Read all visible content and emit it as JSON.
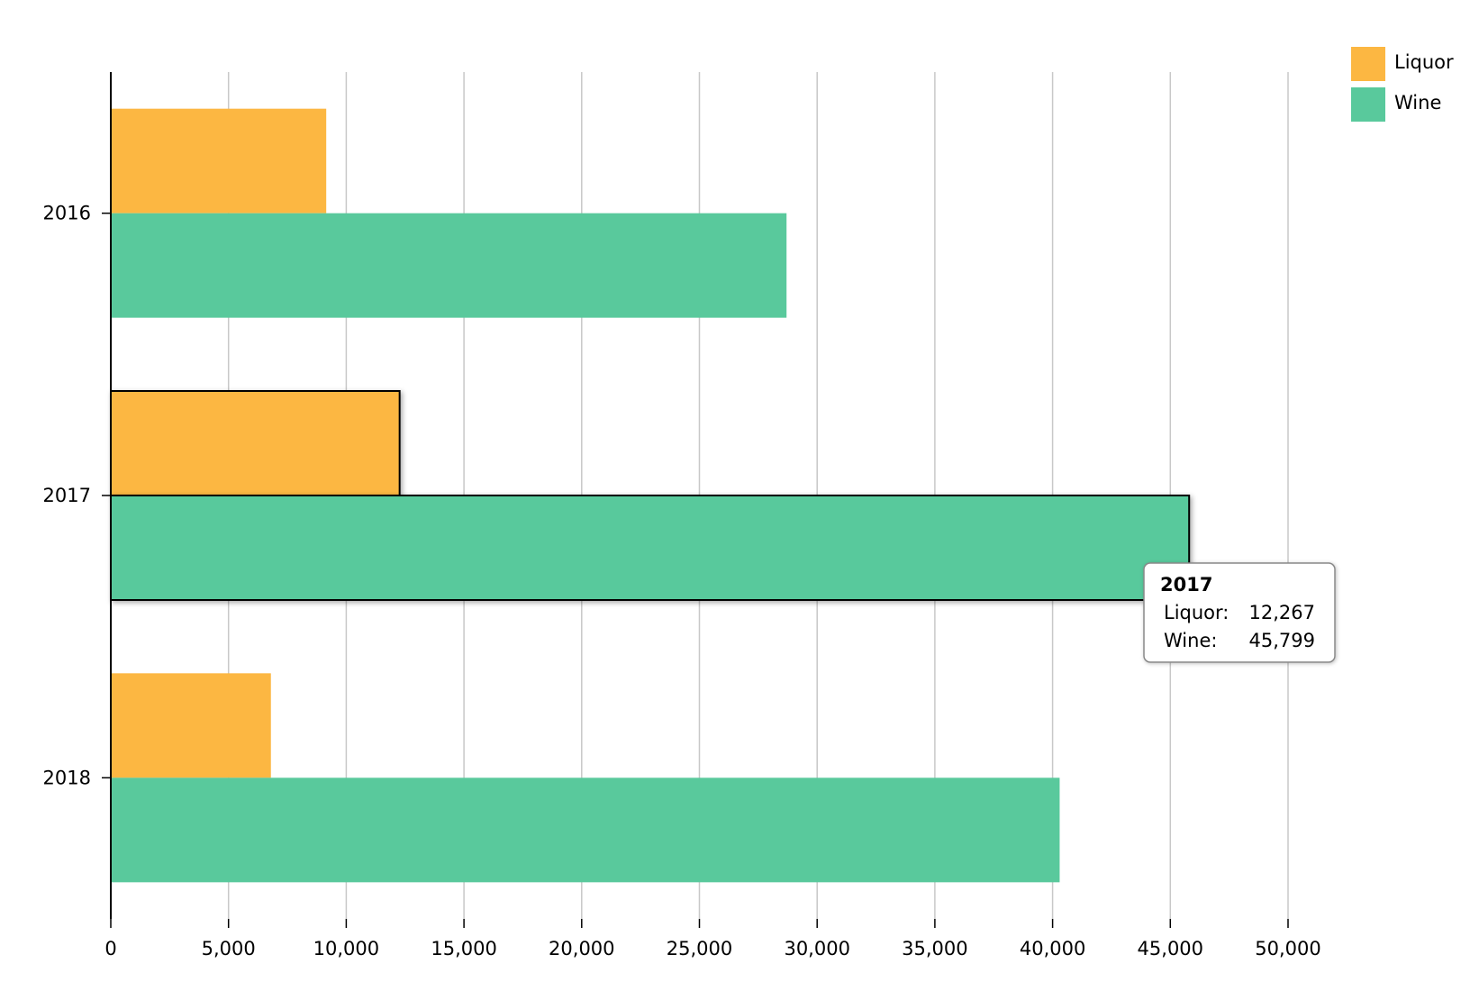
{
  "chart_data": {
    "type": "bar",
    "orientation": "horizontal",
    "categories": [
      "2016",
      "2017",
      "2018"
    ],
    "series": [
      {
        "name": "Liquor",
        "color": "#fcb742",
        "values": [
          9150,
          12267,
          6800
        ]
      },
      {
        "name": "Wine",
        "color": "#59c99c",
        "values": [
          28700,
          45799,
          40300
        ]
      }
    ],
    "x_ticks": [
      "0",
      "5,000",
      "10,000",
      "15,000",
      "20,000",
      "25,000",
      "30,000",
      "35,000",
      "40,000",
      "45,000",
      "50,000"
    ],
    "xlim": [
      0,
      50000
    ],
    "grid": true,
    "legend": {
      "position": "top-right",
      "items": [
        "Liquor",
        "Wine"
      ]
    },
    "highlighted_category": "2017",
    "tooltip": {
      "title": "2017",
      "rows": [
        {
          "label": "Liquor:",
          "value": "12,267"
        },
        {
          "label": "Wine:",
          "value": "45,799"
        }
      ]
    },
    "title": "",
    "xlabel": "",
    "ylabel": ""
  }
}
